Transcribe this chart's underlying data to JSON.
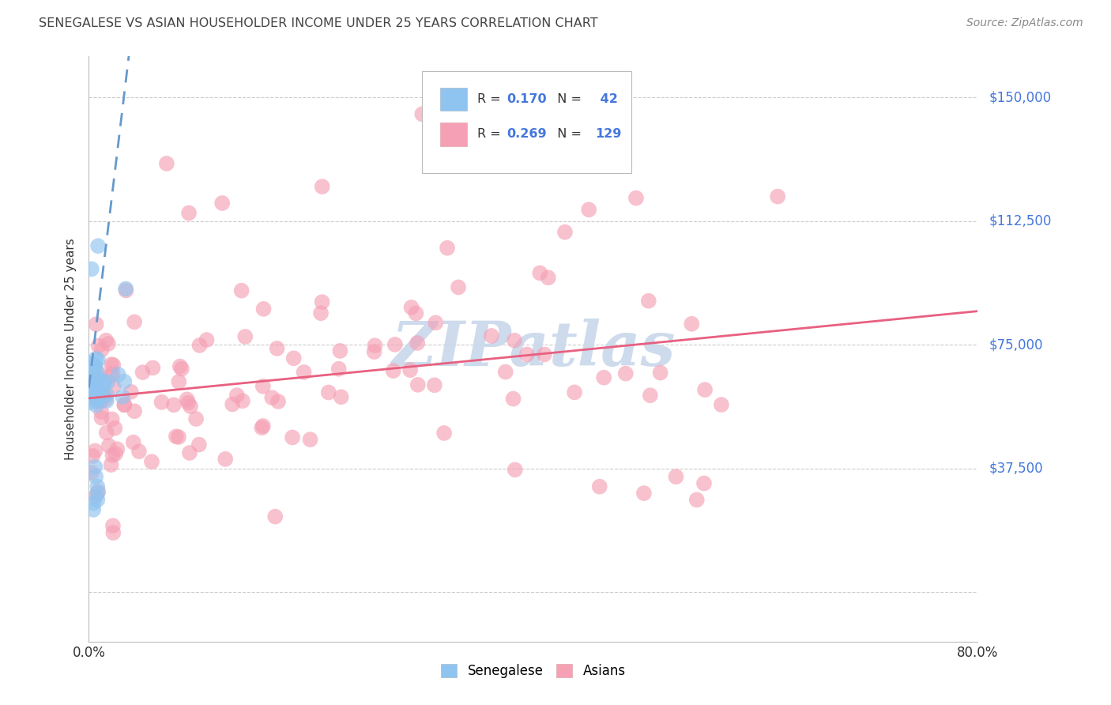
{
  "title": "SENEGALESE VS ASIAN HOUSEHOLDER INCOME UNDER 25 YEARS CORRELATION CHART",
  "source": "Source: ZipAtlas.com",
  "ylabel": "Householder Income Under 25 years",
  "ylim": [
    -15000,
    162500
  ],
  "xlim": [
    0.0,
    0.8
  ],
  "yticks": [
    0,
    37500,
    75000,
    112500,
    150000
  ],
  "ytick_labels": [
    "",
    "$37,500",
    "$75,000",
    "$112,500",
    "$150,000"
  ],
  "senegalese_color": "#90C4F0",
  "asian_color": "#F5A0B5",
  "trend_blue_color": "#6699CC",
  "trend_pink_color": "#E86080",
  "watermark_color": "#C8D8EA",
  "background_color": "#FFFFFF",
  "grid_color": "#CCCCCC",
  "title_color": "#444444",
  "label_color": "#333333",
  "axis_label_color": "#4477DD",
  "source_color": "#888888"
}
